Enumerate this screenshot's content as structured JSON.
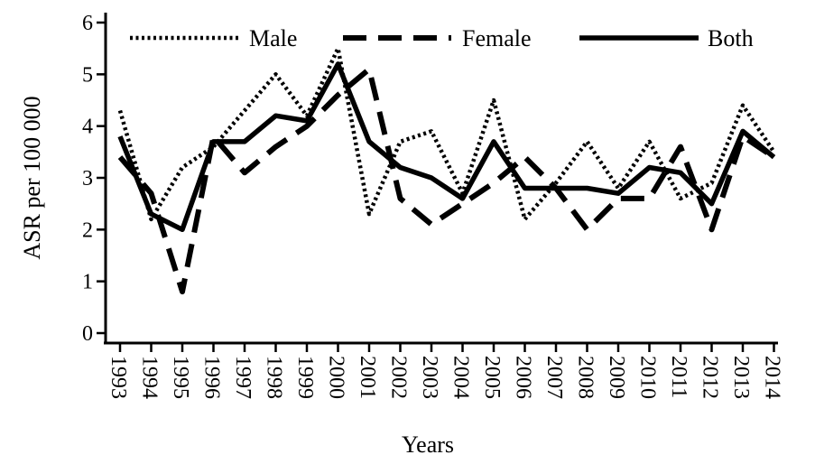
{
  "chart_data": {
    "type": "line",
    "xlabel": "Years",
    "ylabel": "ASR per 100 000",
    "ylim": [
      0,
      6
    ],
    "yticks": [
      0,
      1,
      2,
      3,
      4,
      5,
      6
    ],
    "categories": [
      "1993",
      "1994",
      "1995",
      "1996",
      "1997",
      "1998",
      "1999",
      "2000",
      "2001",
      "2002",
      "2003",
      "2004",
      "2005",
      "2006",
      "2007",
      "2008",
      "2009",
      "2010",
      "2011",
      "2012",
      "2013",
      "2014"
    ],
    "legend_position": "top",
    "grid": false,
    "series": [
      {
        "name": "Male",
        "style": "dotted",
        "values": [
          4.3,
          2.2,
          3.2,
          3.6,
          4.3,
          5.0,
          4.2,
          5.5,
          2.3,
          3.7,
          3.9,
          2.7,
          4.5,
          2.2,
          2.9,
          3.7,
          2.8,
          3.7,
          2.6,
          2.9,
          4.4,
          3.5
        ]
      },
      {
        "name": "Female",
        "style": "dashed",
        "values": [
          3.4,
          2.7,
          0.8,
          3.8,
          3.1,
          3.6,
          4.0,
          4.6,
          5.1,
          2.6,
          2.1,
          2.5,
          2.9,
          3.4,
          2.8,
          2.0,
          2.6,
          2.6,
          3.6,
          2.0,
          3.8,
          3.4
        ]
      },
      {
        "name": "Both",
        "style": "solid",
        "values": [
          3.8,
          2.3,
          2.0,
          3.7,
          3.7,
          4.2,
          4.1,
          5.2,
          3.7,
          3.2,
          3.0,
          2.6,
          3.7,
          2.8,
          2.8,
          2.8,
          2.7,
          3.2,
          3.1,
          2.5,
          3.9,
          3.4
        ]
      }
    ]
  }
}
